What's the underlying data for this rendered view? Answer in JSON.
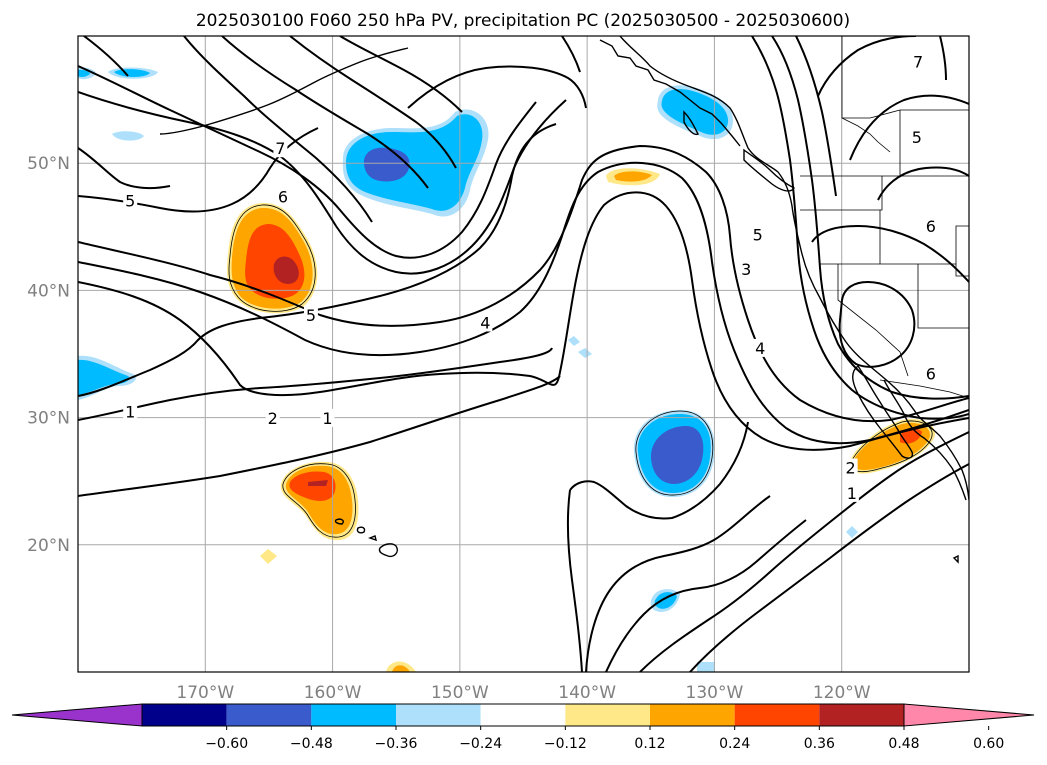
{
  "chart_data": {
    "type": "contour-map",
    "title": "2025030100 F060 250 hPa PV, precipitation PC (2025030500 - 2025030600)",
    "lon_range": [
      -180,
      -110
    ],
    "lat_range": [
      10,
      60
    ],
    "lon_ticks": [
      -170,
      -160,
      -150,
      -140,
      -130,
      -120
    ],
    "lat_ticks": [
      20,
      30,
      40,
      50
    ],
    "lon_tick_labels": [
      "170°W",
      "160°W",
      "150°W",
      "140°W",
      "130°W",
      "120°W"
    ],
    "lat_tick_labels": [
      "20°N",
      "30°N",
      "40°N",
      "50°N"
    ],
    "grid": true,
    "pv_contour_labels": [
      {
        "text": "7",
        "lon": -164.1,
        "lat": 51.1
      },
      {
        "text": "5",
        "lon": -175.9,
        "lat": 47.0
      },
      {
        "text": "6",
        "lon": -163.9,
        "lat": 47.3
      },
      {
        "text": "5",
        "lon": -161.7,
        "lat": 38.0
      },
      {
        "text": "4",
        "lon": -148.0,
        "lat": 37.4
      },
      {
        "text": "1",
        "lon": -175.9,
        "lat": 30.4
      },
      {
        "text": "2",
        "lon": -164.7,
        "lat": 29.9
      },
      {
        "text": "1",
        "lon": -160.4,
        "lat": 29.9
      },
      {
        "text": "5",
        "lon": -126.6,
        "lat": 44.3
      },
      {
        "text": "3",
        "lon": -127.5,
        "lat": 41.6
      },
      {
        "text": "4",
        "lon": -126.4,
        "lat": 35.4
      },
      {
        "text": "7",
        "lon": -114.0,
        "lat": 57.9
      },
      {
        "text": "5",
        "lon": -114.1,
        "lat": 52.0
      },
      {
        "text": "6",
        "lon": -113.0,
        "lat": 45.0
      },
      {
        "text": "6",
        "lon": -113.0,
        "lat": 33.4
      },
      {
        "text": "2",
        "lon": -119.3,
        "lat": 26.0
      },
      {
        "text": "1",
        "lon": -119.2,
        "lat": 24.0
      }
    ],
    "colorbar": {
      "ticks": [
        -0.6,
        -0.48,
        -0.36,
        -0.24,
        -0.12,
        0.12,
        0.24,
        0.36,
        0.48,
        0.6
      ],
      "tick_labels": [
        "−0.60",
        "−0.48",
        "−0.36",
        "−0.24",
        "−0.12",
        "0.12",
        "0.24",
        "0.36",
        "0.48",
        "0.60"
      ],
      "colors": [
        "#9933cc",
        "#00008b",
        "#3a5bcc",
        "#00bbff",
        "#aee0fb",
        "#ffffff",
        "#ffe888",
        "#ffa500",
        "#ff4500",
        "#b22222",
        "#ff88aa"
      ],
      "extend": "both"
    },
    "colors": {
      "c_neg_light": "#aee0fb",
      "c_neg_mid": "#00bbff",
      "c_neg_strong": "#3a5bcc",
      "c_pos_light": "#ffe888",
      "c_pos_mid": "#ffa500",
      "c_pos_strong": "#ff4500",
      "c_pos_vstrong": "#b22222"
    }
  }
}
